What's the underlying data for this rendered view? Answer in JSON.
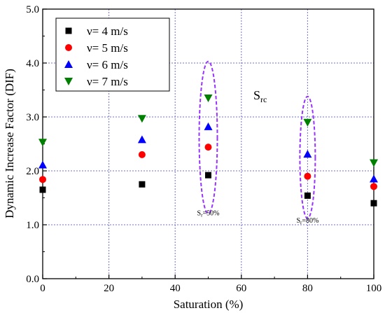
{
  "chart_data": {
    "type": "scatter",
    "title": "",
    "xlabel": "Saturation (%)",
    "ylabel": "Dynamic Increase Factor (DIF)",
    "xlim": [
      0,
      100
    ],
    "ylim": [
      0,
      5
    ],
    "xticks": [
      "0",
      "20",
      "40",
      "60",
      "80",
      "100"
    ],
    "yticks": [
      "0.0",
      "1.0",
      "2.0",
      "3.0",
      "4.0",
      "5.0"
    ],
    "grid": true,
    "legend_position": "top-left",
    "x": [
      0,
      30,
      50,
      80,
      100
    ],
    "series": [
      {
        "name": "ν= 4 m/s",
        "marker": "square",
        "color": "#000000",
        "values": [
          1.65,
          1.75,
          1.92,
          1.54,
          1.4
        ]
      },
      {
        "name": "ν= 5 m/s",
        "marker": "circle",
        "color": "#ff0000",
        "values": [
          1.84,
          2.3,
          2.44,
          1.9,
          1.71
        ]
      },
      {
        "name": "ν= 6 m/s",
        "marker": "triangle-up",
        "color": "#0000ff",
        "values": [
          2.11,
          2.58,
          2.82,
          2.31,
          1.85
        ]
      },
      {
        "name": "ν= 7 m/s",
        "marker": "triangle-down",
        "color": "#008000",
        "values": [
          2.53,
          2.97,
          3.35,
          2.9,
          2.15
        ]
      }
    ],
    "annotations": {
      "corner_label": {
        "base": "S",
        "sub": "rc"
      },
      "ellipse_color": "#9933ff",
      "ellipses": [
        {
          "x": 50,
          "y_center": 2.62,
          "label_base": "S",
          "label_sub": "r",
          "label_rest": "=50%"
        },
        {
          "x": 80,
          "y_center": 2.25,
          "label_base": "S",
          "label_sub": "r",
          "label_rest": "=80%"
        }
      ]
    }
  }
}
